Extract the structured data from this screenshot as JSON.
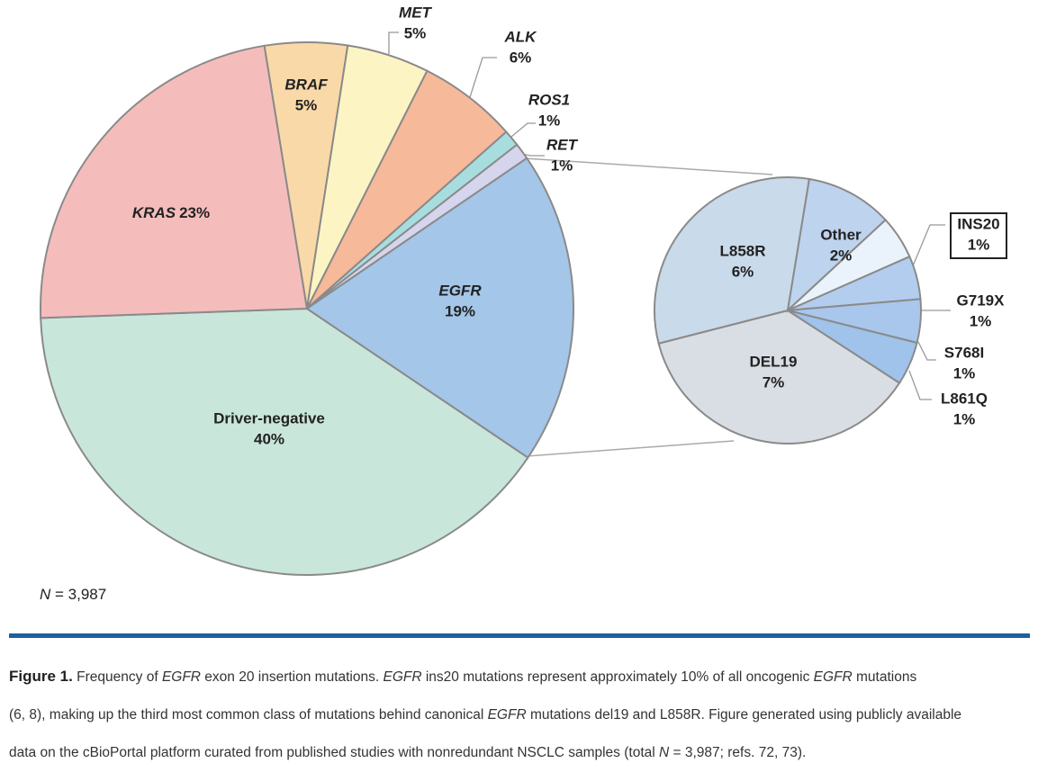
{
  "chart_data": [
    {
      "type": "pie",
      "categories": [
        "Driver-negative",
        "KRAS",
        "BRAF",
        "MET",
        "ALK",
        "ROS1",
        "RET",
        "EGFR"
      ],
      "values": [
        40,
        23,
        5,
        5,
        6,
        1,
        1,
        19
      ],
      "value_labels": [
        "40%",
        "23%",
        "5%",
        "5%",
        "6%",
        "1%",
        "1%",
        "19%"
      ],
      "colors": [
        "#c9e6db",
        "#f4bdbb",
        "#fad9a8",
        "#fdf4c4",
        "#f6b99a",
        "#a8dde0",
        "#d6d5ee",
        "#a4c6e8"
      ],
      "note": [
        "N",
        " = 3,987"
      ]
    },
    {
      "type": "pie",
      "categories": [
        "DEL19",
        "L858R",
        "Other",
        "INS20",
        "G719X",
        "S768I",
        "L861Q"
      ],
      "values": [
        7,
        6,
        2,
        1,
        1,
        1,
        1
      ],
      "value_labels": [
        "7%",
        "6%",
        "2%",
        "1%",
        "1%",
        "1%",
        "1%"
      ],
      "colors": [
        "#d9dee4",
        "#c9daea",
        "#bed3ee",
        "#eaf3fb",
        "#b3cdee",
        "#a9c7ec",
        "#9fc3ea"
      ]
    }
  ],
  "caption": {
    "label": "Figure 1.",
    "lines": [
      [
        " Frequency of ",
        "EGFR",
        " exon 20 insertion mutations. ",
        "EGFR",
        " ins20 mutations represent approximately 10% of all oncogenic ",
        "EGFR",
        " mutations"
      ],
      [
        "(6, 8), making up the third most common class of mutations behind canonical ",
        "EGFR",
        " mutations del19 and L858R. Figure generated using publicly available"
      ],
      [
        "data on the cBioPortal platform curated from published studies with nonredundant NSCLC samples (total ",
        "N",
        " = 3,987; refs. 72, 73)."
      ]
    ]
  }
}
